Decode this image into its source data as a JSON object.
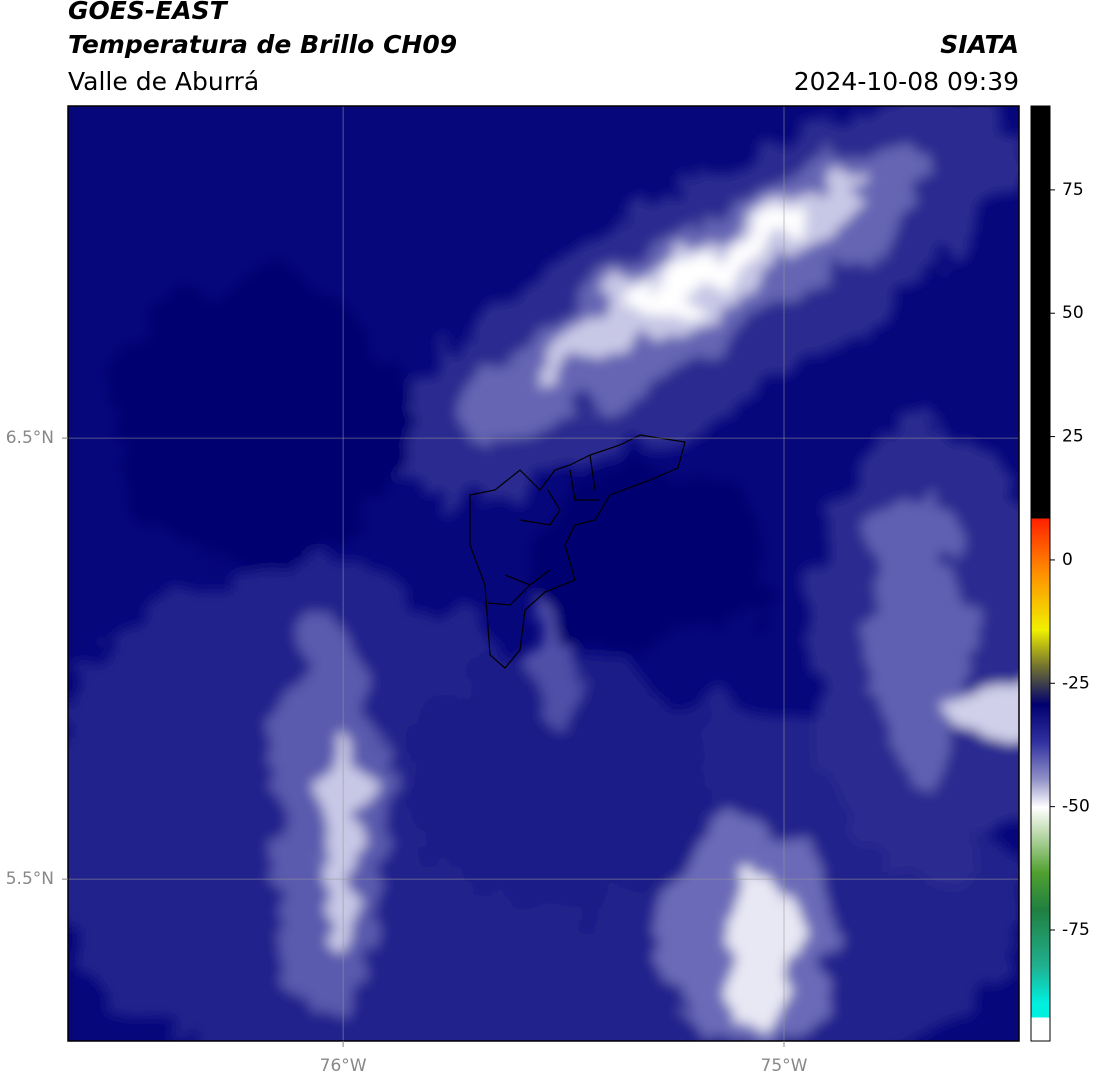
{
  "header": {
    "satellite": "GOES-EAST",
    "product": "Temperatura de Brillo CH09",
    "region": "Valle de Aburrá",
    "agency": "SIATA",
    "timestamp": "2024-10-08 09:39"
  },
  "map": {
    "lat_range": [
      5.133,
      7.253
    ],
    "lon_range": [
      -76.624,
      -74.467
    ],
    "lat_ticks": [
      {
        "value": 6.5,
        "label": "6.5°N"
      },
      {
        "value": 5.5,
        "label": "5.5°N"
      }
    ],
    "lon_ticks": [
      {
        "value": -76,
        "label": "76°W"
      },
      {
        "value": -75,
        "label": "75°W"
      }
    ],
    "grid": true
  },
  "colorbar": {
    "range": [
      -97.5,
      92
    ],
    "ticks": [
      75,
      50,
      25,
      0,
      -25,
      -50,
      -75
    ]
  }
}
